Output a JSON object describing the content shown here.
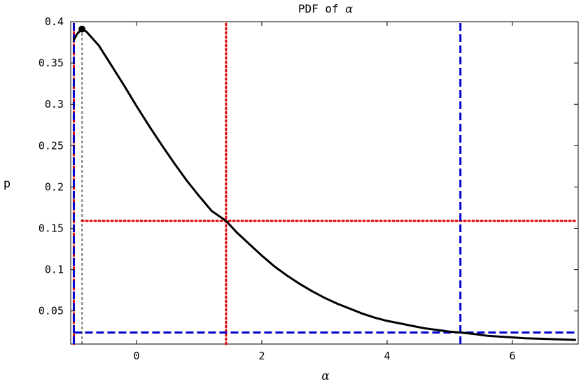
{
  "chart_data": {
    "type": "line",
    "title": "PDF of α",
    "title_prefix": "PDF of ",
    "title_symbol": "α",
    "xlabel": "α",
    "ylabel": "p",
    "xlim": [
      -1.05,
      7.05
    ],
    "ylim": [
      0.01,
      0.4
    ],
    "x_ticks": [
      0,
      2,
      4,
      6
    ],
    "x_tick_labels": [
      "0",
      "2",
      "4",
      "6"
    ],
    "y_ticks": [
      0.05,
      0.1,
      0.15,
      0.2,
      0.25,
      0.3,
      0.35,
      0.4
    ],
    "y_tick_labels": [
      "0.05",
      "0.1",
      "0.15",
      "0.2",
      "0.25",
      "0.3",
      "0.35",
      "0.4"
    ],
    "grid": false,
    "series": [
      {
        "color": "#000000",
        "style": "solid",
        "x": [
          -1.0,
          -0.95,
          -0.9,
          -0.87,
          -0.8,
          -0.6,
          -0.4,
          -0.2,
          0.0,
          0.2,
          0.4,
          0.6,
          0.8,
          1.0,
          1.2,
          1.43,
          1.6,
          1.8,
          2.0,
          2.2,
          2.4,
          2.6,
          2.8,
          3.0,
          3.2,
          3.4,
          3.6,
          3.8,
          4.0,
          4.2,
          4.4,
          4.6,
          4.8,
          5.0,
          5.17,
          5.4,
          5.6,
          5.8,
          6.0,
          6.2,
          6.4,
          6.6,
          6.8,
          7.0
        ],
        "y": [
          0.378,
          0.385,
          0.389,
          0.391,
          0.388,
          0.371,
          0.347,
          0.323,
          0.298,
          0.274,
          0.251,
          0.229,
          0.208,
          0.189,
          0.171,
          0.159,
          0.145,
          0.131,
          0.117,
          0.104,
          0.093,
          0.083,
          0.074,
          0.066,
          0.059,
          0.053,
          0.047,
          0.042,
          0.038,
          0.035,
          0.032,
          0.029,
          0.027,
          0.025,
          0.024,
          0.022,
          0.02,
          0.019,
          0.018,
          0.017,
          0.0165,
          0.016,
          0.0155,
          0.015
        ]
      }
    ],
    "mode_marker": {
      "x": -0.87,
      "y": 0.391
    },
    "reference_lines": [
      {
        "orientation": "vertical",
        "x": -0.87,
        "y_from": 0.01,
        "y_to": 0.391,
        "color": "#000000",
        "style": "thin-dashed"
      },
      {
        "orientation": "vertical",
        "x": -1.0,
        "color": "#e00000",
        "style": "dotted"
      },
      {
        "orientation": "vertical",
        "x": 1.43,
        "color": "#e00000",
        "style": "dotted"
      },
      {
        "orientation": "horizontal",
        "y": 0.159,
        "x_from": -0.87,
        "x_to": 7.0,
        "color": "#e00000",
        "style": "dotted"
      },
      {
        "orientation": "vertical",
        "x": -1.0,
        "color": "#0000cc",
        "style": "dashed"
      },
      {
        "orientation": "vertical",
        "x": 5.17,
        "color": "#0000cc",
        "style": "dashed"
      },
      {
        "orientation": "horizontal",
        "y": 0.024,
        "x_from": -1.0,
        "x_to": 7.0,
        "color": "#0000cc",
        "style": "dashed"
      }
    ]
  }
}
